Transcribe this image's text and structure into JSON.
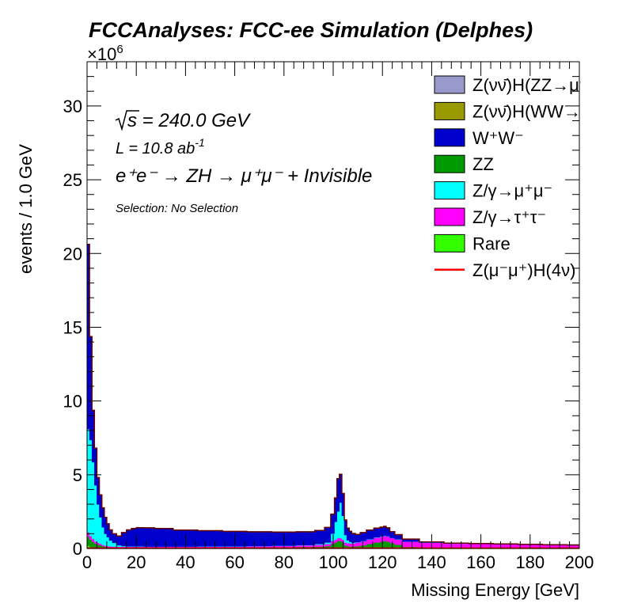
{
  "chart_data": {
    "type": "area",
    "stacked": true,
    "title": "FCCAnalyses: FCC-ee Simulation (Delphes)",
    "xlabel": "Missing Energy [GeV]",
    "ylabel": "events / 1.0 GeV",
    "y_multiplier": "×10",
    "y_multiplier_exp": "6",
    "xlim": [
      0,
      200
    ],
    "ylim": [
      0,
      33
    ],
    "xticks": [
      0,
      20,
      40,
      60,
      80,
      100,
      120,
      140,
      160,
      180,
      200
    ],
    "yticks": [
      0,
      5,
      10,
      15,
      20,
      25,
      30
    ],
    "annotations": {
      "sqrt_s_value": "s = 240.0 GeV",
      "lumi_text": "L = 10.8 ab",
      "lumi_exp": "-1",
      "process": "e⁺e⁻ → ZH → μ⁺μ⁻ + Invisible",
      "selection": "Selection: No Selection"
    },
    "x": [
      0.5,
      1.5,
      2.5,
      3.5,
      4.5,
      5.5,
      6.5,
      7.5,
      8.5,
      9.5,
      11,
      13,
      15,
      17,
      19,
      21,
      25,
      30,
      40,
      50,
      60,
      70,
      80,
      90,
      95,
      98,
      100,
      101,
      102,
      103,
      104,
      105,
      106,
      107,
      108,
      110,
      112,
      115,
      118,
      120,
      121,
      122,
      124,
      126,
      130,
      140,
      150,
      160,
      170,
      180,
      190,
      199.5
    ],
    "series": [
      {
        "name": "Rare",
        "color": "#33ff00",
        "values": [
          0.2,
          0.1,
          0.05,
          0.03,
          0.02,
          0.02,
          0.01,
          0.01,
          0.01,
          0.01,
          0.01,
          0.01,
          0.01,
          0.01,
          0.01,
          0.01,
          0.01,
          0.01,
          0.01,
          0.01,
          0.01,
          0.01,
          0.01,
          0.01,
          0.01,
          0.01,
          0.01,
          0.01,
          0.01,
          0.01,
          0.01,
          0.01,
          0.01,
          0.01,
          0.01,
          0.01,
          0.01,
          0.01,
          0.01,
          0.01,
          0.01,
          0.01,
          0.01,
          0.01,
          0.01,
          0.01,
          0.01,
          0.01,
          0.01,
          0.01,
          0.01,
          0.01
        ]
      },
      {
        "name": "ZZ",
        "color": "#009900",
        "values": [
          0.6,
          0.5,
          0.4,
          0.3,
          0.25,
          0.2,
          0.15,
          0.12,
          0.1,
          0.08,
          0.07,
          0.06,
          0.06,
          0.06,
          0.06,
          0.06,
          0.06,
          0.06,
          0.06,
          0.06,
          0.06,
          0.07,
          0.08,
          0.1,
          0.12,
          0.15,
          0.3,
          0.4,
          0.5,
          0.5,
          0.4,
          0.2,
          0.15,
          0.12,
          0.12,
          0.15,
          0.2,
          0.3,
          0.4,
          0.45,
          0.5,
          0.45,
          0.35,
          0.25,
          0.1,
          0.03,
          0.02,
          0.02,
          0.02,
          0.02,
          0.02,
          0.02
        ]
      },
      {
        "name": "Z/γ→τ⁺τ⁻",
        "color": "#ff00ff",
        "values": [
          0.3,
          0.25,
          0.2,
          0.15,
          0.12,
          0.1,
          0.08,
          0.06,
          0.05,
          0.05,
          0.05,
          0.05,
          0.05,
          0.05,
          0.05,
          0.05,
          0.05,
          0.05,
          0.05,
          0.06,
          0.06,
          0.07,
          0.08,
          0.1,
          0.12,
          0.15,
          0.2,
          0.2,
          0.2,
          0.2,
          0.2,
          0.2,
          0.2,
          0.22,
          0.22,
          0.25,
          0.28,
          0.3,
          0.33,
          0.35,
          0.35,
          0.35,
          0.35,
          0.35,
          0.35,
          0.35,
          0.3,
          0.28,
          0.25,
          0.22,
          0.2,
          0.18
        ]
      },
      {
        "name": "Z/γ→μ⁺μ⁻",
        "color": "#00ffff",
        "values": [
          7.0,
          6.5,
          5.2,
          3.8,
          2.6,
          1.8,
          1.2,
          0.8,
          0.6,
          0.4,
          0.25,
          0.1,
          0.04,
          0.02,
          0.02,
          0.02,
          0.01,
          0.01,
          0.01,
          0.01,
          0.01,
          0.01,
          0.02,
          0.02,
          0.05,
          0.1,
          0.5,
          1.2,
          1.8,
          2.4,
          1.6,
          0.5,
          0.2,
          0.1,
          0.05,
          0.02,
          0.02,
          0.02,
          0.02,
          0.02,
          0.02,
          0.02,
          0.01,
          0.01,
          0.01,
          0.01,
          0.01,
          0.01,
          0.01,
          0.01,
          0.01,
          0.01
        ]
      },
      {
        "name": "W⁺W⁻",
        "color": "#0000cc",
        "values": [
          12.5,
          7.0,
          3.5,
          2.5,
          1.8,
          1.5,
          1.3,
          1.1,
          0.9,
          0.7,
          0.6,
          0.6,
          0.9,
          1.1,
          1.2,
          1.25,
          1.25,
          1.2,
          1.1,
          1.05,
          1.0,
          0.95,
          0.9,
          0.88,
          0.9,
          1.0,
          1.3,
          1.6,
          2.2,
          1.9,
          1.5,
          1.0,
          0.8,
          0.7,
          0.6,
          0.5,
          0.55,
          0.6,
          0.6,
          0.6,
          0.6,
          0.55,
          0.4,
          0.3,
          0.15,
          0.02,
          0.0,
          0.0,
          0.0,
          0.0,
          0.0,
          0.0
        ]
      },
      {
        "name": "Z(νν̄)H(WW→μ⁺νμ⁻ν̄)",
        "color": "#999900",
        "values": [
          0.01,
          0.01,
          0.01,
          0.01,
          0.01,
          0.01,
          0.01,
          0.01,
          0.01,
          0.01,
          0.01,
          0.01,
          0.01,
          0.01,
          0.01,
          0.01,
          0.01,
          0.01,
          0.01,
          0.01,
          0.01,
          0.01,
          0.01,
          0.01,
          0.01,
          0.01,
          0.01,
          0.01,
          0.01,
          0.01,
          0.01,
          0.01,
          0.01,
          0.01,
          0.01,
          0.01,
          0.01,
          0.01,
          0.01,
          0.01,
          0.01,
          0.01,
          0.01,
          0.01,
          0.01,
          0.01,
          0.01,
          0.01,
          0.01,
          0.01,
          0.01,
          0.01
        ]
      },
      {
        "name": "Z(νν̄)H(ZZ→μ⁺μ⁻ν⁺ν⁻)",
        "color": "#9999cc",
        "values": [
          0.01,
          0.01,
          0.01,
          0.01,
          0.01,
          0.01,
          0.01,
          0.01,
          0.01,
          0.01,
          0.01,
          0.01,
          0.01,
          0.01,
          0.01,
          0.01,
          0.01,
          0.01,
          0.01,
          0.01,
          0.01,
          0.01,
          0.01,
          0.01,
          0.01,
          0.01,
          0.01,
          0.01,
          0.01,
          0.01,
          0.01,
          0.01,
          0.01,
          0.01,
          0.01,
          0.01,
          0.01,
          0.01,
          0.01,
          0.01,
          0.01,
          0.01,
          0.01,
          0.01,
          0.01,
          0.01,
          0.01,
          0.01,
          0.01,
          0.01,
          0.01,
          0.01
        ]
      }
    ],
    "signal": {
      "name": "Z(μ⁻μ⁺)H(4ν)",
      "color": "#ff0000",
      "values": [
        0.02,
        0.02,
        0.02,
        0.02,
        0.02,
        0.02,
        0.02,
        0.02,
        0.02,
        0.02,
        0.02,
        0.02,
        0.02,
        0.02,
        0.02,
        0.02,
        0.02,
        0.02,
        0.02,
        0.02,
        0.02,
        0.02,
        0.02,
        0.02,
        0.02,
        0.02,
        0.02,
        0.02,
        0.02,
        0.02,
        0.02,
        0.02,
        0.02,
        0.02,
        0.02,
        0.02,
        0.02,
        0.02,
        0.02,
        0.02,
        0.02,
        0.02,
        0.02,
        0.02,
        0.02,
        0.02,
        0.02,
        0.02,
        0.02,
        0.02,
        0.02,
        0.02
      ]
    },
    "legend": {
      "placement": "top-right",
      "entries": [
        {
          "label": "Z(νν̄)H(ZZ→μ⁺μ⁻ν⁺ν⁻)",
          "color": "#9999cc",
          "kind": "fill"
        },
        {
          "label": "Z(νν̄)H(WW→μ⁺νμ⁻ν̄)",
          "color": "#999900",
          "kind": "fill"
        },
        {
          "label": "W⁺W⁻",
          "color": "#0000cc",
          "kind": "fill"
        },
        {
          "label": "ZZ",
          "color": "#009900",
          "kind": "fill"
        },
        {
          "label": "Z/γ→μ⁺μ⁻",
          "color": "#00ffff",
          "kind": "fill"
        },
        {
          "label": "Z/γ→τ⁺τ⁻",
          "color": "#ff00ff",
          "kind": "fill"
        },
        {
          "label": "Rare",
          "color": "#33ff00",
          "kind": "fill"
        },
        {
          "label": "Z(μ⁻μ⁺)H(4ν)",
          "color": "#ff0000",
          "kind": "line"
        }
      ]
    }
  }
}
